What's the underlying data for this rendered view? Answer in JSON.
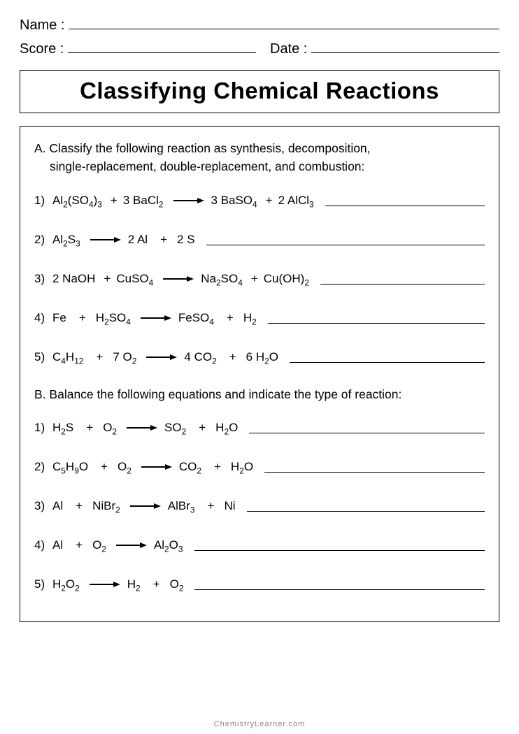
{
  "header": {
    "name_label": "Name :",
    "score_label": "Score :",
    "date_label": "Date :"
  },
  "title": "Classifying Chemical Reactions",
  "section_a": {
    "label": "A.",
    "instruction_line1": "Classify the following reaction as synthesis, decomposition,",
    "instruction_line2": "single-replacement, double-replacement, and combustion:",
    "questions": [
      {
        "num": "1)",
        "lhs": [
          "Al<sub>2</sub>(SO<sub>4</sub>)<sub>3</sub>",
          "3 BaCl<sub>2</sub>"
        ],
        "rhs": [
          "3 BaSO<sub>4</sub>",
          "2 AlCl<sub>3</sub>"
        ]
      },
      {
        "num": "2)",
        "lhs": [
          "Al<sub>2</sub>S<sub>3</sub>"
        ],
        "rhs": [
          "2 Al",
          "2 S"
        ],
        "wide": true
      },
      {
        "num": "3)",
        "lhs": [
          "2 NaOH",
          "CuSO<sub>4</sub>"
        ],
        "rhs": [
          "Na<sub>2</sub>SO<sub>4</sub>",
          "Cu(OH)<sub>2</sub>"
        ]
      },
      {
        "num": "4)",
        "lhs": [
          "Fe",
          "H<sub>2</sub>SO<sub>4</sub>"
        ],
        "rhs": [
          "FeSO<sub>4</sub>",
          "H<sub>2</sub>"
        ],
        "wide": true
      },
      {
        "num": "5)",
        "lhs": [
          "C<sub>4</sub>H<sub>12</sub>",
          "7 O<sub>2</sub>"
        ],
        "rhs": [
          "4 CO<sub>2</sub>",
          "6 H<sub>2</sub>O"
        ],
        "wide": true
      }
    ]
  },
  "section_b": {
    "label": "B.",
    "instruction": "Balance the following equations and indicate the type of reaction:",
    "questions": [
      {
        "num": "1)",
        "lhs": [
          "H<sub>2</sub>S",
          "O<sub>2</sub>"
        ],
        "rhs": [
          "SO<sub>2</sub>",
          "H<sub>2</sub>O"
        ],
        "wide": true
      },
      {
        "num": "2)",
        "lhs": [
          "C<sub>5</sub>H<sub>9</sub>O",
          "O<sub>2</sub>"
        ],
        "rhs": [
          "CO<sub>2</sub>",
          "H<sub>2</sub>O"
        ],
        "wide": true
      },
      {
        "num": "3)",
        "lhs": [
          "Al",
          "NiBr<sub>2</sub>"
        ],
        "rhs": [
          "AlBr<sub>3</sub>",
          "Ni"
        ],
        "wide": true
      },
      {
        "num": "4)",
        "lhs": [
          "Al",
          "O<sub>2</sub>"
        ],
        "rhs": [
          "Al<sub>2</sub>O<sub>3</sub>"
        ],
        "wide": true
      },
      {
        "num": "5)",
        "lhs": [
          "H<sub>2</sub>O<sub>2</sub>"
        ],
        "rhs": [
          "H<sub>2</sub>",
          "O<sub>2</sub>"
        ],
        "wide": true
      }
    ]
  },
  "footer": "ChemistryLearner.com",
  "colors": {
    "text": "#000000",
    "background": "#ffffff",
    "footer": "#888888"
  }
}
